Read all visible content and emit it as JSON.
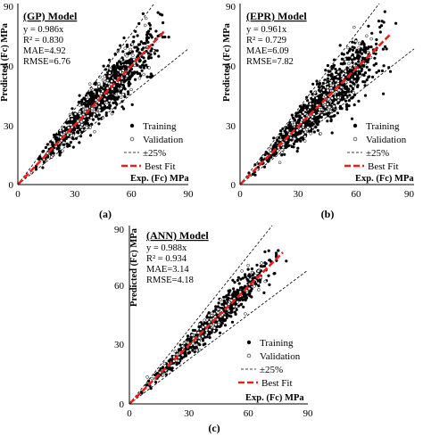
{
  "panel_labels": [
    "(a)",
    "(b)",
    "(c)"
  ],
  "chart_data": [
    {
      "type": "scatter",
      "title": "(GP) Model",
      "xlabel": "Exp. (Fc) MPa",
      "ylabel": "Predicted (Fc) MPa",
      "xlim": [
        0,
        90
      ],
      "ylim": [
        0,
        90
      ],
      "xticks": [
        "0",
        "30",
        "60",
        "90"
      ],
      "yticks": [
        "0",
        "30",
        "60",
        "90"
      ],
      "stats": [
        "y = 0.986x",
        "R² = 0.830",
        "MAE=4.92",
        "RMSE=6.76"
      ],
      "legend": [
        "Training",
        "Validation",
        "±25%",
        "Best Fit"
      ],
      "legend_position": "bottom-right",
      "grid": false,
      "slope": 0.986,
      "band": 0.25,
      "series": [
        {
          "name": "Training",
          "marker": "filled-circle",
          "n_points": 900,
          "x_range": [
            2,
            85
          ],
          "rel_scatter": 0.2,
          "seed": 11
        },
        {
          "name": "Validation",
          "marker": "open-circle",
          "n_points": 150,
          "x_range": [
            4,
            80
          ],
          "rel_scatter": 0.2,
          "seed": 29
        }
      ]
    },
    {
      "type": "scatter",
      "title": "(EPR) Model",
      "xlabel": "Exp. (Fc) MPa",
      "ylabel": "Predicted (Fc) MPa",
      "xlim": [
        0,
        90
      ],
      "ylim": [
        0,
        90
      ],
      "xticks": [
        "0",
        "30",
        "60",
        "90"
      ],
      "yticks": [
        "0",
        "30",
        "60",
        "90"
      ],
      "stats": [
        "y = 0.961x",
        "R² = 0.729",
        "MAE=6.09",
        "RMSE=7.82"
      ],
      "legend": [
        "Training",
        "Validation",
        "±25%",
        "Best Fit"
      ],
      "legend_position": "bottom-right",
      "grid": false,
      "slope": 0.961,
      "band": 0.25,
      "series": [
        {
          "name": "Training",
          "marker": "filled-circle",
          "n_points": 1000,
          "x_range": [
            2,
            85
          ],
          "rel_scatter": 0.24,
          "seed": 47
        },
        {
          "name": "Validation",
          "marker": "open-circle",
          "n_points": 160,
          "x_range": [
            4,
            80
          ],
          "rel_scatter": 0.24,
          "seed": 53
        }
      ]
    },
    {
      "type": "scatter",
      "title": "(ANN) Model",
      "xlabel": "Exp. (Fc) MPa",
      "ylabel": "Predicted (Fc) MPa",
      "xlim": [
        0,
        90
      ],
      "ylim": [
        0,
        90
      ],
      "xticks": [
        "0",
        "30",
        "60",
        "90"
      ],
      "yticks": [
        "0",
        "30",
        "60",
        "90"
      ],
      "stats": [
        "y = 0.988x",
        "R² = 0.934",
        "MAE=3.14",
        "RMSE=4.18"
      ],
      "legend": [
        "Training",
        "Validation",
        "±25%",
        "Best Fit"
      ],
      "legend_position": "bottom-right",
      "grid": false,
      "slope": 0.988,
      "band": 0.25,
      "series": [
        {
          "name": "Training",
          "marker": "filled-circle",
          "n_points": 850,
          "x_range": [
            2,
            80
          ],
          "rel_scatter": 0.11,
          "seed": 71
        },
        {
          "name": "Validation",
          "marker": "open-circle",
          "n_points": 150,
          "x_range": [
            4,
            78
          ],
          "rel_scatter": 0.11,
          "seed": 83
        }
      ]
    }
  ],
  "colors": {
    "best_fit": "#e8201e",
    "points": "#000000",
    "band": "#000000"
  }
}
